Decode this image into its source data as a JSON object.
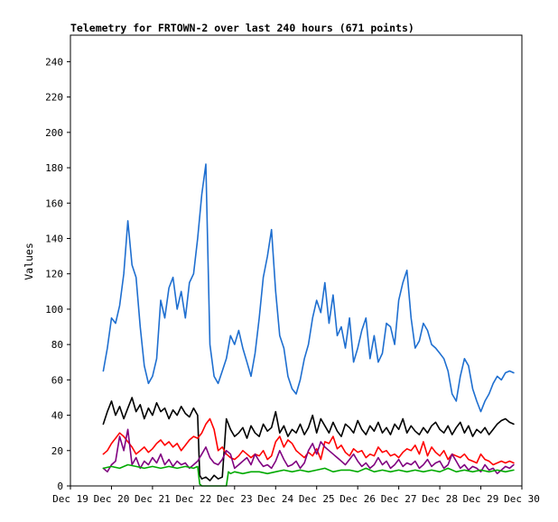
{
  "chart_data": {
    "type": "line",
    "title": "Telemetry for FRTOWN-2 over last 240 hours (671 points)",
    "ylabel": "Values",
    "xlabel": "",
    "x_ticks": [
      "Dec 19",
      "Dec 20",
      "Dec 21",
      "Dec 22",
      "Dec 23",
      "Dec 24",
      "Dec 25",
      "Dec 26",
      "Dec 27",
      "Dec 28",
      "Dec 29",
      "Dec 30"
    ],
    "y_ticks": [
      0,
      20,
      40,
      60,
      80,
      100,
      120,
      140,
      160,
      180,
      200,
      220,
      240
    ],
    "ylim": [
      0,
      255
    ],
    "xlim": [
      "Dec 19",
      "Dec 30"
    ],
    "grid": false,
    "legend": "none",
    "x_unit": "days since Dec 19",
    "series": [
      {
        "color": "#1f6fd0",
        "x": [
          0.8,
          0.9,
          1.0,
          1.1,
          1.2,
          1.3,
          1.4,
          1.5,
          1.6,
          1.7,
          1.8,
          1.9,
          2.0,
          2.1,
          2.2,
          2.3,
          2.4,
          2.5,
          2.6,
          2.7,
          2.8,
          2.9,
          3.0,
          3.1,
          3.2,
          3.3,
          3.4,
          3.5,
          3.6,
          3.7,
          3.8,
          3.9,
          4.0,
          4.1,
          4.2,
          4.3,
          4.4,
          4.5,
          4.6,
          4.7,
          4.8,
          4.9,
          5.0,
          5.1,
          5.2,
          5.3,
          5.4,
          5.5,
          5.6,
          5.7,
          5.8,
          5.9,
          6.0,
          6.1,
          6.2,
          6.3,
          6.4,
          6.5,
          6.6,
          6.7,
          6.8,
          6.9,
          7.0,
          7.1,
          7.2,
          7.3,
          7.4,
          7.5,
          7.6,
          7.7,
          7.8,
          7.9,
          8.0,
          8.1,
          8.2,
          8.3,
          8.4,
          8.5,
          8.6,
          8.7,
          8.8,
          8.9,
          9.0,
          9.1,
          9.2,
          9.3,
          9.4,
          9.5,
          9.6,
          9.7,
          9.8,
          9.9,
          10.0,
          10.1,
          10.2,
          10.3,
          10.4,
          10.5,
          10.6,
          10.7,
          10.8
        ],
        "values": [
          65,
          78,
          95,
          92,
          102,
          120,
          150,
          125,
          118,
          90,
          68,
          58,
          62,
          72,
          105,
          95,
          112,
          118,
          100,
          110,
          95,
          115,
          120,
          140,
          165,
          182,
          80,
          62,
          58,
          65,
          72,
          85,
          80,
          88,
          78,
          70,
          62,
          75,
          95,
          118,
          130,
          145,
          110,
          85,
          78,
          62,
          55,
          52,
          60,
          72,
          80,
          95,
          105,
          98,
          115,
          92,
          108,
          85,
          90,
          78,
          95,
          70,
          78,
          88,
          95,
          72,
          85,
          70,
          75,
          92,
          90,
          80,
          105,
          115,
          122,
          95,
          78,
          82,
          92,
          88,
          80,
          78,
          75,
          72,
          65,
          52,
          48,
          62,
          72,
          68,
          55,
          48,
          42,
          48,
          52,
          58,
          62,
          60,
          64,
          65,
          64
        ]
      },
      {
        "color": "#000000",
        "x": [
          0.8,
          0.9,
          1.0,
          1.1,
          1.2,
          1.3,
          1.4,
          1.5,
          1.6,
          1.7,
          1.8,
          1.9,
          2.0,
          2.1,
          2.2,
          2.3,
          2.4,
          2.5,
          2.6,
          2.7,
          2.8,
          2.9,
          3.0,
          3.1,
          3.15,
          3.2,
          3.3,
          3.4,
          3.5,
          3.6,
          3.7,
          3.8,
          3.9,
          4.0,
          4.1,
          4.2,
          4.3,
          4.4,
          4.5,
          4.6,
          4.7,
          4.8,
          4.9,
          5.0,
          5.1,
          5.2,
          5.3,
          5.4,
          5.5,
          5.6,
          5.7,
          5.8,
          5.9,
          6.0,
          6.1,
          6.2,
          6.3,
          6.4,
          6.5,
          6.6,
          6.7,
          6.8,
          6.9,
          7.0,
          7.1,
          7.2,
          7.3,
          7.4,
          7.5,
          7.6,
          7.7,
          7.8,
          7.9,
          8.0,
          8.1,
          8.2,
          8.3,
          8.4,
          8.5,
          8.6,
          8.7,
          8.8,
          8.9,
          9.0,
          9.1,
          9.2,
          9.3,
          9.4,
          9.5,
          9.6,
          9.7,
          9.8,
          9.9,
          10.0,
          10.1,
          10.2,
          10.3,
          10.4,
          10.5,
          10.6,
          10.7,
          10.8
        ],
        "values": [
          35,
          42,
          48,
          40,
          45,
          38,
          44,
          50,
          42,
          46,
          38,
          44,
          40,
          47,
          42,
          44,
          38,
          43,
          40,
          45,
          41,
          39,
          44,
          40,
          6,
          4,
          5,
          3,
          6,
          4,
          5,
          38,
          32,
          28,
          30,
          33,
          27,
          34,
          30,
          28,
          35,
          31,
          33,
          42,
          30,
          34,
          28,
          32,
          30,
          35,
          29,
          33,
          40,
          30,
          38,
          34,
          30,
          36,
          31,
          28,
          35,
          33,
          30,
          37,
          32,
          29,
          34,
          31,
          36,
          30,
          33,
          29,
          35,
          32,
          38,
          30,
          34,
          31,
          29,
          33,
          30,
          34,
          36,
          32,
          30,
          34,
          29,
          33,
          36,
          30,
          34,
          28,
          32,
          30,
          33,
          29,
          32,
          35,
          37,
          38,
          36,
          35
        ]
      },
      {
        "color": "#ff0000",
        "x": [
          0.8,
          0.9,
          1.0,
          1.1,
          1.2,
          1.3,
          1.4,
          1.5,
          1.6,
          1.7,
          1.8,
          1.9,
          2.0,
          2.1,
          2.2,
          2.3,
          2.4,
          2.5,
          2.6,
          2.7,
          2.8,
          2.9,
          3.0,
          3.1,
          3.2,
          3.3,
          3.4,
          3.5,
          3.6,
          3.7,
          3.8,
          3.9,
          4.0,
          4.1,
          4.2,
          4.3,
          4.4,
          4.5,
          4.6,
          4.7,
          4.8,
          4.9,
          5.0,
          5.1,
          5.2,
          5.3,
          5.4,
          5.5,
          5.6,
          5.7,
          5.8,
          5.9,
          6.0,
          6.1,
          6.2,
          6.3,
          6.4,
          6.5,
          6.6,
          6.7,
          6.8,
          6.9,
          7.0,
          7.1,
          7.2,
          7.3,
          7.4,
          7.5,
          7.6,
          7.7,
          7.8,
          7.9,
          8.0,
          8.1,
          8.2,
          8.3,
          8.4,
          8.5,
          8.6,
          8.7,
          8.8,
          8.9,
          9.0,
          9.1,
          9.2,
          9.3,
          9.4,
          9.5,
          9.6,
          9.7,
          9.8,
          9.9,
          10.0,
          10.1,
          10.2,
          10.3,
          10.4,
          10.5,
          10.6,
          10.7,
          10.8
        ],
        "values": [
          18,
          20,
          24,
          27,
          30,
          28,
          25,
          22,
          18,
          20,
          22,
          19,
          21,
          24,
          26,
          23,
          25,
          22,
          24,
          20,
          23,
          26,
          28,
          27,
          30,
          35,
          38,
          32,
          20,
          22,
          18,
          16,
          15,
          17,
          20,
          18,
          16,
          18,
          17,
          20,
          15,
          17,
          25,
          28,
          22,
          26,
          24,
          20,
          18,
          16,
          19,
          17,
          21,
          15,
          25,
          24,
          28,
          21,
          23,
          19,
          17,
          21,
          19,
          20,
          16,
          18,
          17,
          22,
          19,
          20,
          17,
          18,
          16,
          19,
          21,
          20,
          23,
          18,
          25,
          17,
          22,
          19,
          17,
          20,
          15,
          18,
          17,
          16,
          18,
          15,
          14,
          13,
          18,
          15,
          14,
          12,
          13,
          14,
          13,
          14,
          13
        ]
      },
      {
        "color": "#800080",
        "x": [
          0.8,
          0.9,
          1.0,
          1.1,
          1.2,
          1.3,
          1.4,
          1.5,
          1.6,
          1.7,
          1.8,
          1.9,
          2.0,
          2.1,
          2.2,
          2.3,
          2.4,
          2.5,
          2.6,
          2.7,
          2.8,
          2.9,
          3.0,
          3.1,
          3.2,
          3.3,
          3.4,
          3.5,
          3.6,
          3.7,
          3.8,
          3.9,
          4.0,
          4.1,
          4.2,
          4.3,
          4.4,
          4.5,
          4.6,
          4.7,
          4.8,
          4.9,
          5.0,
          5.1,
          5.2,
          5.3,
          5.4,
          5.5,
          5.6,
          5.7,
          5.8,
          5.9,
          6.0,
          6.1,
          6.2,
          6.3,
          6.4,
          6.5,
          6.6,
          6.7,
          6.8,
          6.9,
          7.0,
          7.1,
          7.2,
          7.3,
          7.4,
          7.5,
          7.6,
          7.7,
          7.8,
          7.9,
          8.0,
          8.1,
          8.2,
          8.3,
          8.4,
          8.5,
          8.6,
          8.7,
          8.8,
          8.9,
          9.0,
          9.1,
          9.2,
          9.3,
          9.4,
          9.5,
          9.6,
          9.7,
          9.8,
          9.9,
          10.0,
          10.1,
          10.2,
          10.3,
          10.4,
          10.5,
          10.6,
          10.7,
          10.8
        ],
        "values": [
          10,
          8,
          12,
          14,
          28,
          20,
          32,
          12,
          16,
          10,
          14,
          12,
          16,
          13,
          18,
          12,
          15,
          11,
          14,
          12,
          13,
          10,
          12,
          14,
          18,
          22,
          16,
          13,
          12,
          15,
          20,
          18,
          10,
          12,
          14,
          16,
          12,
          18,
          14,
          11,
          12,
          10,
          14,
          20,
          15,
          11,
          12,
          14,
          10,
          13,
          20,
          24,
          18,
          25,
          22,
          20,
          18,
          16,
          14,
          12,
          15,
          18,
          14,
          11,
          13,
          10,
          12,
          16,
          12,
          14,
          10,
          12,
          15,
          11,
          13,
          12,
          14,
          10,
          12,
          15,
          11,
          13,
          14,
          10,
          12,
          18,
          14,
          10,
          12,
          9,
          11,
          10,
          8,
          12,
          9,
          10,
          7,
          9,
          11,
          10,
          12
        ]
      },
      {
        "color": "#00aa00",
        "x": [
          0.8,
          1.0,
          1.2,
          1.4,
          1.6,
          1.8,
          2.0,
          2.2,
          2.4,
          2.6,
          2.8,
          3.0,
          3.1,
          3.15,
          3.2,
          3.4,
          3.6,
          3.8,
          3.85,
          3.9,
          4.0,
          4.2,
          4.4,
          4.6,
          4.8,
          5.0,
          5.2,
          5.4,
          5.6,
          5.8,
          6.0,
          6.2,
          6.4,
          6.6,
          6.8,
          7.0,
          7.2,
          7.4,
          7.6,
          7.8,
          8.0,
          8.2,
          8.4,
          8.6,
          8.8,
          9.0,
          9.2,
          9.4,
          9.6,
          9.8,
          10.0,
          10.2,
          10.4,
          10.6,
          10.8
        ],
        "values": [
          10,
          11,
          10,
          12,
          11,
          10,
          11,
          10,
          11,
          10,
          11,
          10,
          11,
          1,
          0,
          0,
          0,
          0,
          8,
          7,
          8,
          7,
          8,
          8,
          7,
          8,
          9,
          8,
          9,
          8,
          9,
          10,
          8,
          9,
          9,
          8,
          10,
          8,
          9,
          8,
          9,
          8,
          9,
          8,
          9,
          8,
          10,
          8,
          9,
          8,
          9,
          8,
          9,
          8,
          9
        ]
      }
    ]
  }
}
